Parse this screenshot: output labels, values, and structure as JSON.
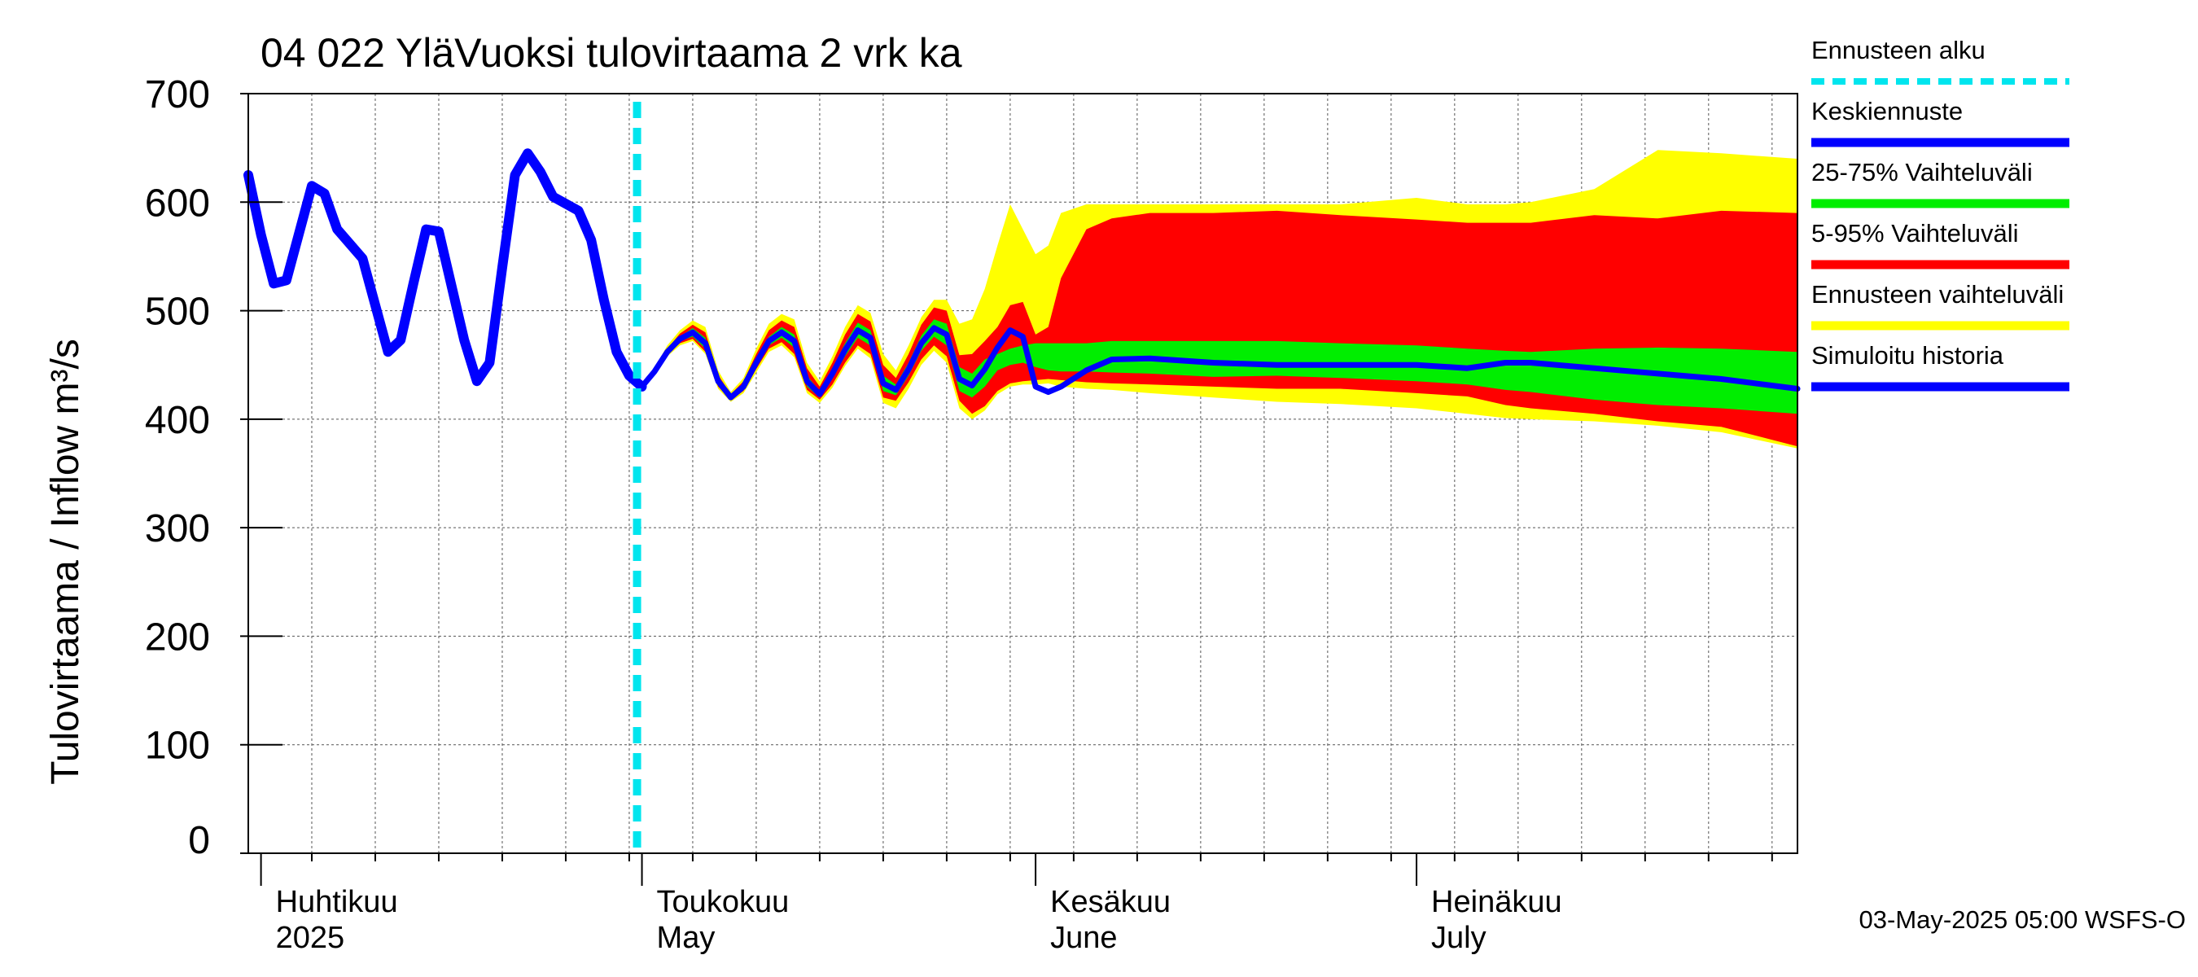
{
  "chart_data": {
    "type": "area",
    "title": "04 022 YläVuoksi tulovirtaama 2 vrk ka",
    "ylabel": "Tulovirtaama / Inflow   m³/s",
    "ylim": [
      0,
      700
    ],
    "y_ticks": [
      0,
      100,
      200,
      300,
      400,
      500,
      600,
      700
    ],
    "x_range": [
      "2025-03-31",
      "2025-07-31"
    ],
    "grid": true,
    "legend_position": "right",
    "month_labels": [
      {
        "fi": "Huhtikuu",
        "en": "2025",
        "date": "2025-04-01"
      },
      {
        "fi": "Toukokuu",
        "en": "May",
        "date": "2025-05-01"
      },
      {
        "fi": "Kesäkuu",
        "en": "June",
        "date": "2025-06-01"
      },
      {
        "fi": "Heinäkuu",
        "en": "July",
        "date": "2025-07-01"
      }
    ],
    "forecast_start": "2025-05-01",
    "legend": [
      {
        "label": "Ennusteen alku",
        "color": "#00e5ee",
        "style": "dashed"
      },
      {
        "label": "Keskiennuste",
        "color": "#0000ff",
        "style": "solid"
      },
      {
        "label": "25-75% Vaihteluväli",
        "color": "#00ee00",
        "style": "solid"
      },
      {
        "label": "5-95% Vaihteluväli",
        "color": "#ff0000",
        "style": "solid"
      },
      {
        "label": "Ennusteen vaihteluväli",
        "color": "#ffff00",
        "style": "solid"
      },
      {
        "label": "Simuloitu historia",
        "color": "#0000ff",
        "style": "solid"
      }
    ],
    "history": {
      "name": "Simuloitu historia",
      "x": [
        "2025-03-31",
        "2025-04-01",
        "2025-04-02",
        "2025-04-03",
        "2025-04-05",
        "2025-04-06",
        "2025-04-07",
        "2025-04-09",
        "2025-04-10",
        "2025-04-11",
        "2025-04-12",
        "2025-04-13",
        "2025-04-14",
        "2025-04-15",
        "2025-04-17",
        "2025-04-18",
        "2025-04-19",
        "2025-04-20",
        "2025-04-21",
        "2025-04-22",
        "2025-04-23",
        "2025-04-24",
        "2025-04-26",
        "2025-04-27",
        "2025-04-28",
        "2025-04-29",
        "2025-04-30",
        "2025-05-01"
      ],
      "values": [
        625,
        570,
        525,
        528,
        615,
        608,
        575,
        548,
        505,
        462,
        473,
        525,
        575,
        573,
        473,
        435,
        452,
        540,
        625,
        645,
        628,
        605,
        592,
        565,
        510,
        462,
        440,
        430
      ]
    },
    "forecast_x": [
      "2025-05-01",
      "2025-05-02",
      "2025-05-03",
      "2025-05-04",
      "2025-05-05",
      "2025-05-06",
      "2025-05-07",
      "2025-05-08",
      "2025-05-09",
      "2025-05-10",
      "2025-05-11",
      "2025-05-12",
      "2025-05-13",
      "2025-05-14",
      "2025-05-15",
      "2025-05-16",
      "2025-05-17",
      "2025-05-18",
      "2025-05-19",
      "2025-05-20",
      "2025-05-21",
      "2025-05-22",
      "2025-05-23",
      "2025-05-24",
      "2025-05-25",
      "2025-05-26",
      "2025-05-27",
      "2025-05-28",
      "2025-05-29",
      "2025-05-30",
      "2025-05-31",
      "2025-06-01",
      "2025-06-02",
      "2025-06-03",
      "2025-06-05",
      "2025-06-07",
      "2025-06-10",
      "2025-06-15",
      "2025-06-20",
      "2025-06-25",
      "2025-07-01",
      "2025-07-05",
      "2025-07-08",
      "2025-07-10",
      "2025-07-15",
      "2025-07-20",
      "2025-07-25",
      "2025-07-31"
    ],
    "series": [
      {
        "name": "Keskiennuste",
        "values": [
          430,
          444,
          462,
          474,
          480,
          470,
          435,
          420,
          430,
          452,
          472,
          480,
          472,
          435,
          423,
          442,
          464,
          482,
          475,
          433,
          427,
          446,
          470,
          484,
          478,
          437,
          431,
          446,
          466,
          482,
          476,
          430,
          425,
          430,
          445,
          455,
          456,
          452,
          450,
          450,
          450,
          447,
          452,
          452,
          447,
          442,
          437,
          428
        ]
      },
      {
        "name": "25-75% low",
        "values": [
          430,
          443,
          461,
          472,
          476,
          465,
          432,
          419,
          428,
          448,
          468,
          475,
          466,
          430,
          420,
          437,
          458,
          475,
          468,
          426,
          422,
          440,
          463,
          476,
          468,
          426,
          420,
          430,
          445,
          450,
          452,
          448,
          445,
          444,
          444,
          443,
          442,
          439,
          440,
          438,
          435,
          432,
          427,
          425,
          418,
          413,
          410,
          405
        ]
      },
      {
        "name": "25-75% high",
        "values": [
          430,
          445,
          463,
          476,
          484,
          475,
          438,
          421,
          432,
          456,
          476,
          485,
          478,
          440,
          426,
          447,
          470,
          489,
          482,
          440,
          432,
          452,
          477,
          492,
          488,
          448,
          442,
          455,
          460,
          465,
          468,
          470,
          470,
          470,
          470,
          472,
          472,
          472,
          472,
          470,
          468,
          465,
          463,
          462,
          465,
          466,
          465,
          462
        ]
      },
      {
        "name": "5-95% low",
        "values": [
          430,
          442,
          460,
          470,
          474,
          462,
          430,
          418,
          426,
          446,
          465,
          471,
          460,
          427,
          418,
          432,
          452,
          468,
          460,
          420,
          417,
          434,
          455,
          468,
          458,
          417,
          405,
          412,
          426,
          433,
          435,
          436,
          437,
          436,
          434,
          433,
          432,
          430,
          428,
          428,
          424,
          421,
          413,
          410,
          405,
          398,
          393,
          375
        ]
      },
      {
        "name": "5-95% high",
        "values": [
          430,
          446,
          465,
          479,
          487,
          480,
          441,
          423,
          435,
          460,
          482,
          491,
          485,
          447,
          430,
          452,
          478,
          497,
          490,
          450,
          438,
          460,
          487,
          503,
          500,
          459,
          460,
          472,
          485,
          505,
          508,
          478,
          485,
          530,
          575,
          585,
          590,
          590,
          592,
          588,
          584,
          581,
          581,
          581,
          588,
          585,
          592,
          590
        ]
      },
      {
        "name": "Ennusteen vaihteluväli low",
        "values": [
          430,
          441,
          458,
          468,
          472,
          460,
          428,
          416,
          424,
          443,
          462,
          468,
          457,
          424,
          415,
          429,
          449,
          465,
          456,
          415,
          410,
          428,
          450,
          463,
          452,
          410,
          400,
          408,
          423,
          430,
          432,
          432,
          433,
          430,
          428,
          427,
          424,
          420,
          416,
          414,
          410,
          405,
          401,
          400,
          398,
          394,
          388,
          373
        ]
      },
      {
        "name": "Ennusteen vaihteluväli high",
        "values": [
          430,
          447,
          468,
          482,
          491,
          485,
          445,
          425,
          438,
          465,
          488,
          497,
          492,
          452,
          435,
          458,
          485,
          505,
          498,
          460,
          445,
          468,
          494,
          510,
          510,
          488,
          492,
          520,
          560,
          598,
          575,
          552,
          560,
          590,
          598,
          598,
          598,
          598,
          598,
          598,
          604,
          598,
          598,
          600,
          612,
          648,
          645,
          640
        ]
      }
    ]
  },
  "footer": "03-May-2025 05:00 WSFS-O"
}
